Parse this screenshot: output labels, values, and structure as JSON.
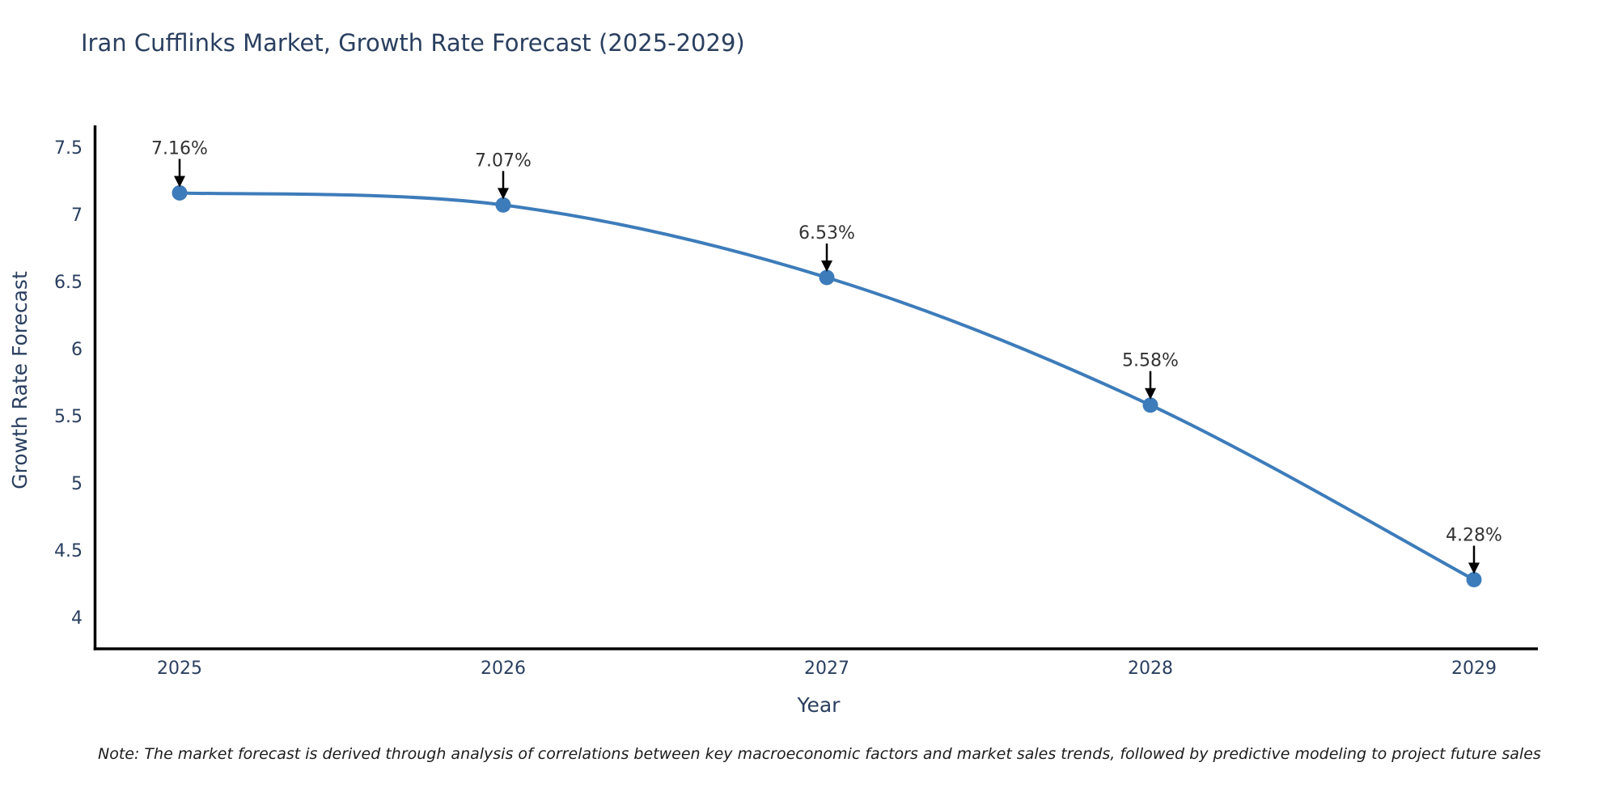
{
  "header": {
    "title": "Iran Cufflinks Market, Growth Rate Forecast (2025-2029)"
  },
  "footer": {
    "note": "Note: The market forecast is derived through analysis of correlations between key macroeconomic factors and market sales trends, followed by predictive modeling to project future sales"
  },
  "colors": {
    "line": "#3d7cba",
    "marker": "#3d7cba",
    "axis": "#000000",
    "title_text": "#2a3f5f",
    "tick_text": "#2a3f5f",
    "axis_title_text": "#2a3f5f",
    "annotation_text": "#333333",
    "annotation_arrow": "#000000",
    "background": "#ffffff"
  },
  "chart_data": {
    "type": "line",
    "title": "Iran Cufflinks Market, Growth Rate Forecast (2025-2029)",
    "x": [
      "2025",
      "2026",
      "2027",
      "2028",
      "2029"
    ],
    "series": [
      {
        "name": "Growth Rate Forecast",
        "values": [
          7.16,
          7.07,
          6.53,
          5.58,
          4.28
        ]
      }
    ],
    "point_labels": [
      "7.16%",
      "7.07%",
      "6.53%",
      "5.58%",
      "4.28%"
    ],
    "xlabel": "Year",
    "ylabel": "Growth Rate Forecast",
    "yticks": [
      4,
      4.5,
      5,
      5.5,
      6,
      6.5,
      7,
      7.5
    ],
    "ylim": [
      3.77,
      7.66
    ],
    "grid": false,
    "legend": false,
    "line_shape": "spline",
    "annotation_style": "down-arrow-above-point"
  }
}
